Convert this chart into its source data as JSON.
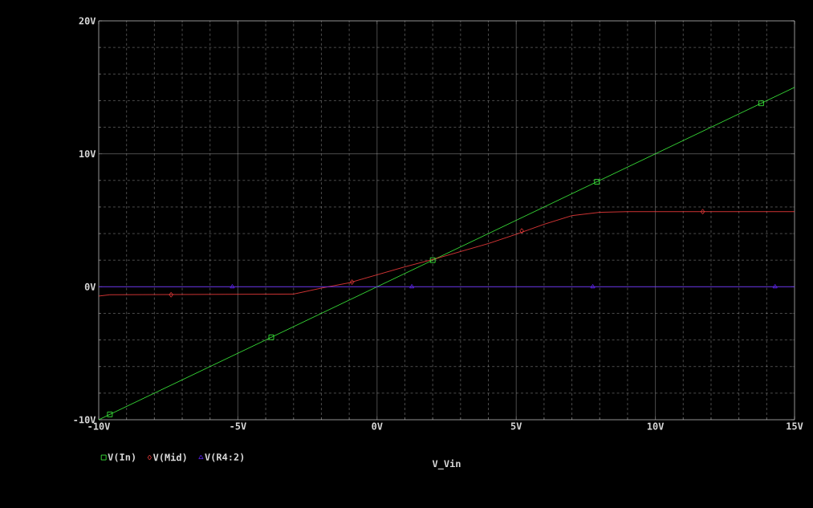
{
  "chart_data": {
    "type": "line",
    "xlabel": "V_Vin",
    "xlim": [
      -10,
      15
    ],
    "ylim": [
      -10,
      20
    ],
    "xticks": [
      {
        "value": -10,
        "label": "-10V"
      },
      {
        "value": -5,
        "label": "-5V"
      },
      {
        "value": 0,
        "label": "0V"
      },
      {
        "value": 5,
        "label": "5V"
      },
      {
        "value": 10,
        "label": "10V"
      },
      {
        "value": 15,
        "label": "15V"
      }
    ],
    "yticks": [
      {
        "value": -10,
        "label": "-10V"
      },
      {
        "value": 0,
        "label": "0V"
      },
      {
        "value": 10,
        "label": "10V"
      },
      {
        "value": 20,
        "label": "20V"
      }
    ],
    "grid": true,
    "legend": "bottom",
    "series": [
      {
        "name": "V(In)",
        "color": "#40ff40",
        "x": [
          -10,
          15
        ],
        "values": [
          -10,
          15
        ]
      },
      {
        "name": "V(Mid)",
        "color": "#ff4040",
        "x": [
          -10,
          -9.6,
          -3,
          -2,
          -1,
          0,
          1,
          2,
          3,
          4,
          5,
          6,
          7,
          8,
          9,
          15
        ],
        "values": [
          -0.7,
          -0.6,
          -0.55,
          -0.1,
          0.3,
          0.9,
          1.5,
          2.05,
          2.65,
          3.25,
          3.95,
          4.7,
          5.35,
          5.6,
          5.65,
          5.65
        ]
      },
      {
        "name": "V(R4:2)",
        "color": "#6020ff",
        "x": [
          -10,
          15
        ],
        "values": [
          0,
          0
        ]
      },
      {
        "type": "scatter",
        "color": "#40ff40",
        "marker": "square",
        "x": [
          -9.6,
          -3.8,
          2.0,
          7.9,
          13.8
        ],
        "values": [
          -9.6,
          -3.8,
          2.0,
          7.9,
          13.8
        ]
      },
      {
        "type": "scatter",
        "color": "#ff4040",
        "marker": "diamond",
        "x": [
          -7.4,
          -0.9,
          5.2,
          11.7
        ],
        "values": [
          -0.6,
          0.35,
          4.2,
          5.65
        ]
      },
      {
        "type": "scatter",
        "color": "#6020ff",
        "marker": "triangle",
        "x": [
          -5.2,
          1.25,
          7.75,
          14.3
        ],
        "values": [
          0,
          0,
          0,
          0
        ]
      }
    ]
  }
}
